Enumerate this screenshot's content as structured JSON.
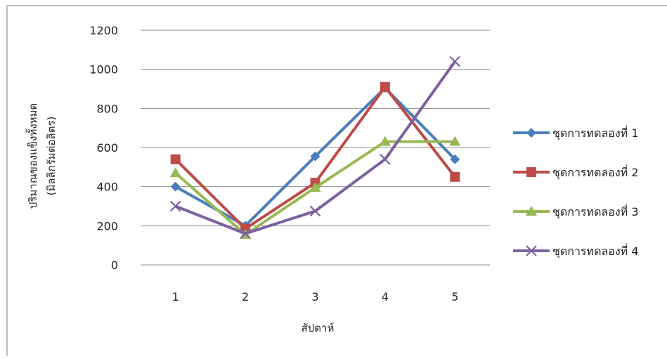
{
  "chart_data": {
    "type": "line",
    "title": "",
    "xlabel": "สัปดาห์",
    "ylabel_lines": [
      "ปริมาณของแข็งทั้งหมด",
      "(มิลลิกรัมต่อลิตร)"
    ],
    "categories": [
      "1",
      "2",
      "3",
      "4",
      "5"
    ],
    "ylim": [
      0,
      1200
    ],
    "yticks": [
      "0",
      "200",
      "400",
      "600",
      "800",
      "1000",
      "1200"
    ],
    "grid": true,
    "legend_position": "right",
    "series": [
      {
        "name": "ชุดการทดลองที่ 1",
        "values": [
          400,
          200,
          555,
          905,
          540
        ],
        "color": "#4a7ebb",
        "marker": "diamond"
      },
      {
        "name": "ชุดการทดลองที่ 2",
        "values": [
          540,
          185,
          420,
          910,
          450
        ],
        "color": "#be4b48",
        "marker": "square"
      },
      {
        "name": "ชุดการทดลองที่ 3",
        "values": [
          470,
          155,
          395,
          630,
          630
        ],
        "color": "#98b954",
        "marker": "triangle"
      },
      {
        "name": "ชุดการทดลองที่ 4",
        "values": [
          300,
          160,
          275,
          540,
          1040
        ],
        "color": "#7d60a0",
        "marker": "x"
      }
    ]
  }
}
